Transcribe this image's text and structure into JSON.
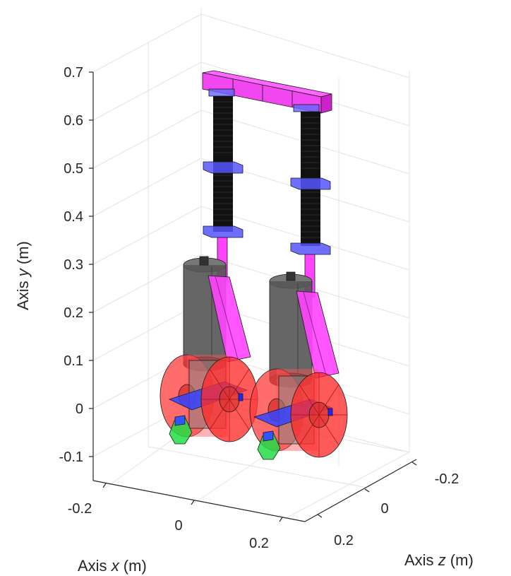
{
  "y_axis": {
    "label_prefix": "Axis ",
    "label_var": "y",
    "label_unit": "  (m)",
    "ticks": [
      "0.7",
      "0.6",
      "0.5",
      "0.4",
      "0.3",
      "0.2",
      "0.1",
      "0",
      "-0.1"
    ]
  },
  "x_axis": {
    "label_prefix": "Axis ",
    "label_var": "x",
    "label_unit": "  (m)",
    "ticks": [
      "-0.2",
      "0",
      "0.2"
    ]
  },
  "z_axis": {
    "label_prefix": "Axis ",
    "label_var": "z",
    "label_unit": "  (m)",
    "ticks": [
      "-0.2",
      "0",
      "0.2"
    ]
  },
  "colors": {
    "magenta": "#ff33ff",
    "blue": "#4d4dff",
    "black_spring": "#0a0a0a",
    "grey_cylinder": "#555555",
    "red_wheel": "#ff3333",
    "green_foot": "#33dd33",
    "grid": "#e3e3e3"
  }
}
